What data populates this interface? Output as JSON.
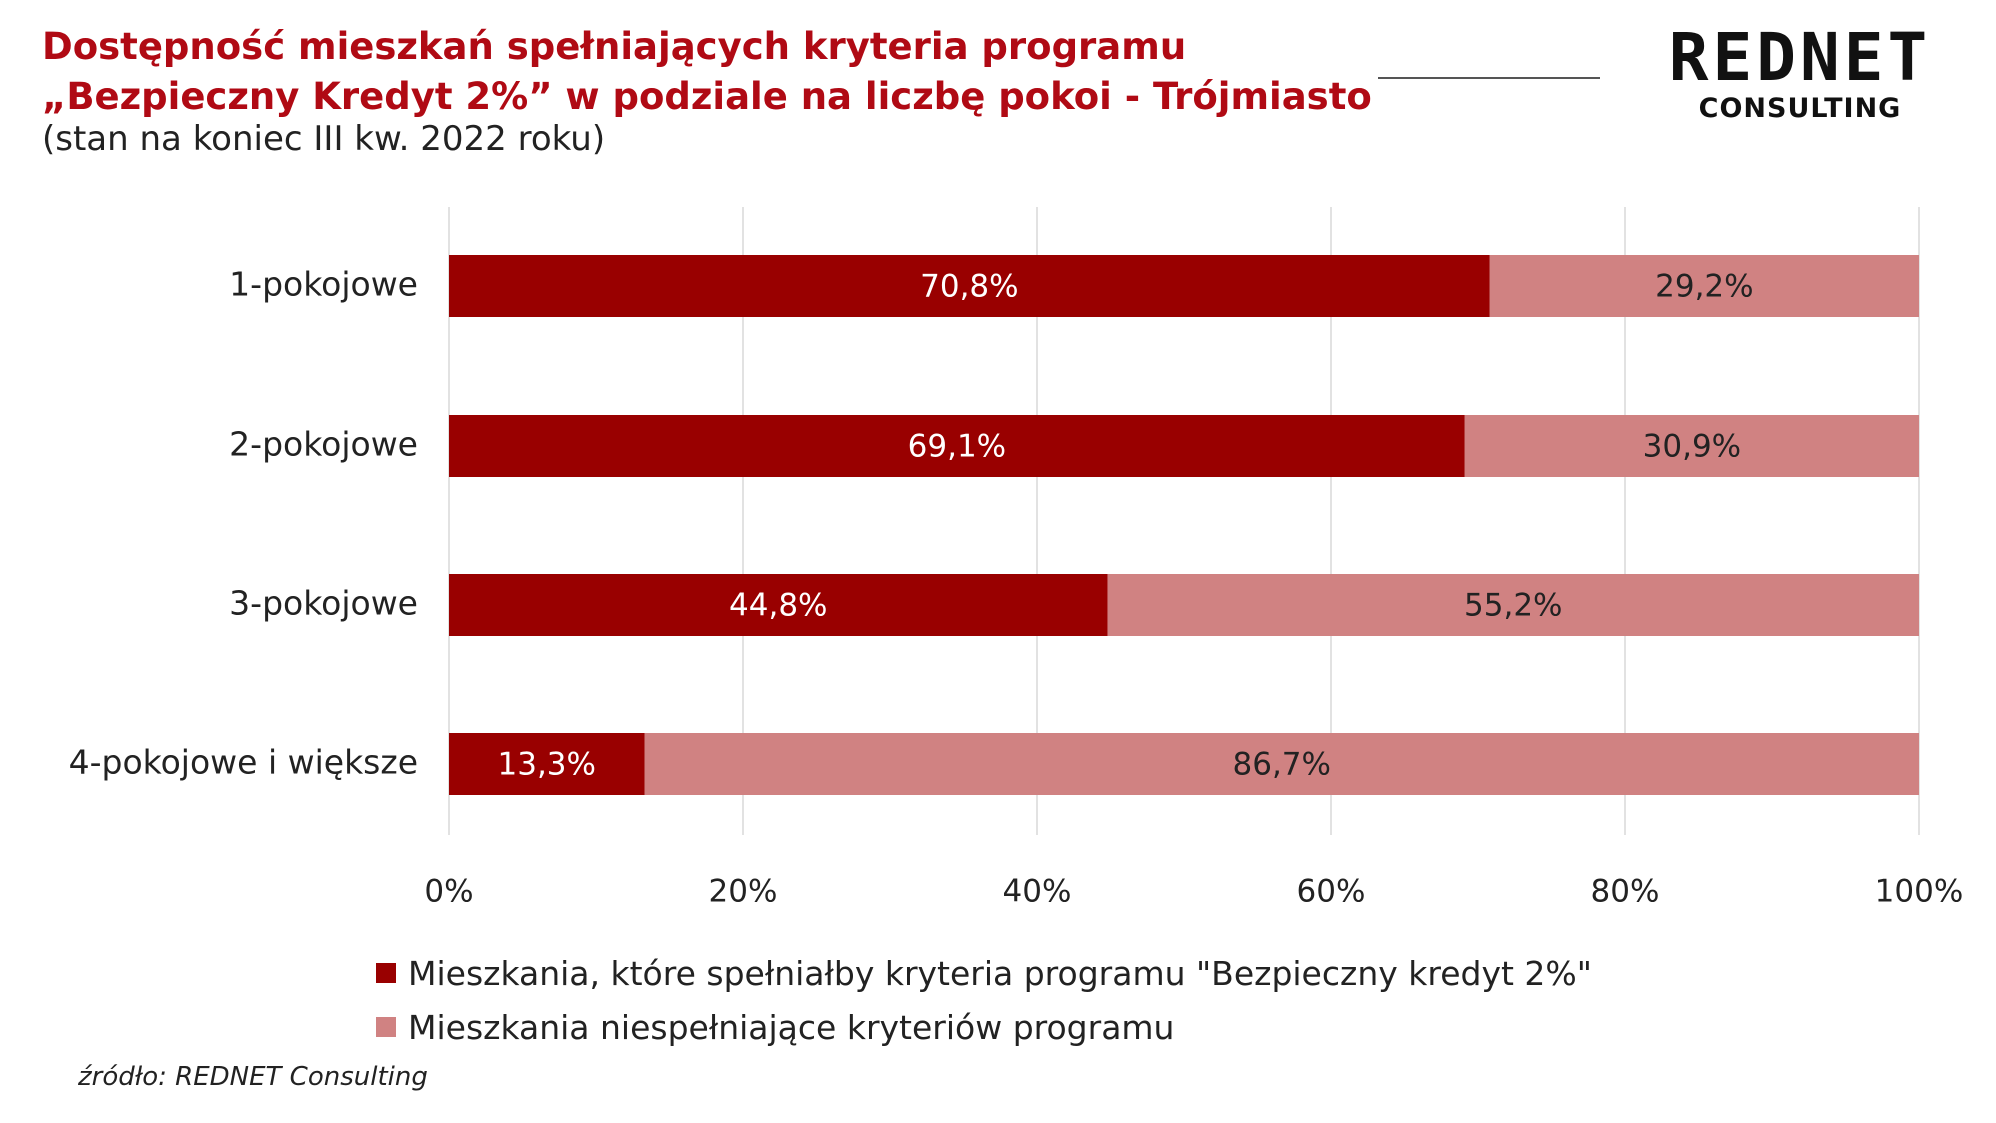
{
  "header": {
    "title": "Dostępność mieszkań spełniających kryteria programu „Bezpieczny Kredyt 2%” w podziale na liczbę pokoi - Trójmiasto",
    "subtitle": "(stan na koniec III kw. 2022 roku)"
  },
  "logo": {
    "main": "REDNET",
    "sub": "CONSULTING"
  },
  "chart_data": {
    "type": "bar",
    "orientation": "horizontal",
    "stacked": true,
    "categories": [
      "1-pokojowe",
      "2-pokojowe",
      "3-pokojowe",
      "4-pokojowe i większe"
    ],
    "series": [
      {
        "name": "Mieszkania, które spełniałby kryteria programu \"Bezpieczny kredyt 2%\"",
        "values": [
          70.8,
          69.1,
          44.8,
          13.3
        ],
        "labels": [
          "70,8%",
          "69,1%",
          "44,8%",
          "13,3%"
        ],
        "color": "#990000",
        "label_color": "#ffffff"
      },
      {
        "name": "Mieszkania niespełniające kryteriów programu",
        "values": [
          29.2,
          30.9,
          55.2,
          86.7
        ],
        "labels": [
          "29,2%",
          "30,9%",
          "55,2%",
          "86,7%"
        ],
        "color": "#d08282",
        "label_color": "#222222"
      }
    ],
    "xlim": [
      0,
      100
    ],
    "xticks": [
      "0%",
      "20%",
      "40%",
      "60%",
      "80%",
      "100%"
    ],
    "grid": true,
    "legend_position": "bottom"
  },
  "source": "źródło: REDNET Consulting"
}
